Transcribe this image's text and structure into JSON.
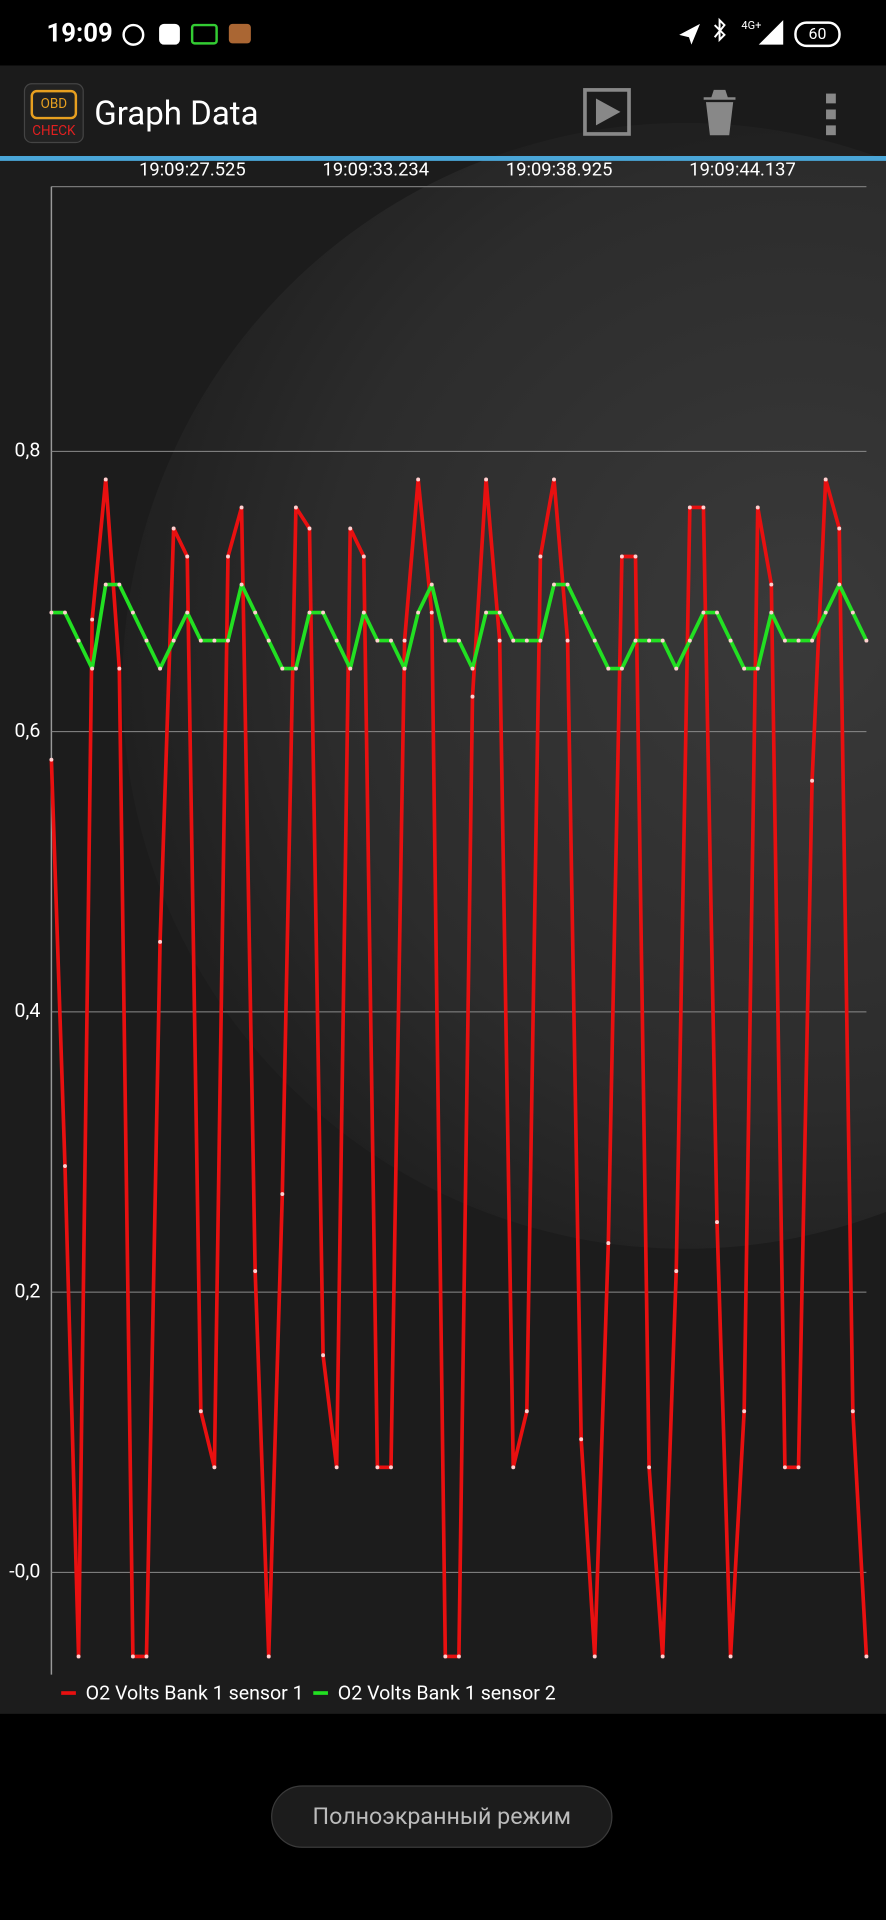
{
  "status_bar": {
    "time": "19:09",
    "network": "4G+",
    "battery": "60"
  },
  "app_bar": {
    "title": "Graph Data",
    "icon_text": "CHECK",
    "icon_badge": "OBD"
  },
  "chart_data": {
    "type": "line",
    "x_labels": [
      "19:09:27.525",
      "19:09:33.234",
      "19:09:38.925",
      "19:09:44.137"
    ],
    "ylim": [
      -0.073,
      0.989
    ],
    "yticks": [
      {
        "value": 0.8,
        "label": "0,8"
      },
      {
        "value": 0.6,
        "label": "0,6"
      },
      {
        "value": 0.4,
        "label": "0,4"
      },
      {
        "value": 0.2,
        "label": "0,2"
      },
      {
        "value": 0,
        "label": "-0,0"
      }
    ],
    "grid": true,
    "series": [
      {
        "name": "O2 Volts Bank 1 sensor 1",
        "color": "#e81010",
        "values": [
          0.58,
          0.29,
          -0.06,
          0.68,
          0.78,
          0.645,
          -0.06,
          -0.06,
          0.45,
          0.745,
          0.725,
          0.115,
          0.075,
          0.725,
          0.76,
          0.215,
          -0.06,
          0.27,
          0.76,
          0.745,
          0.155,
          0.075,
          0.745,
          0.725,
          0.075,
          0.075,
          0.665,
          0.78,
          0.685,
          -0.06,
          -0.06,
          0.625,
          0.78,
          0.665,
          0.075,
          0.115,
          0.725,
          0.78,
          0.665,
          0.095,
          -0.06,
          0.235,
          0.725,
          0.725,
          0.075,
          -0.06,
          0.215,
          0.76,
          0.76,
          0.25,
          -0.06,
          0.115,
          0.76,
          0.705,
          0.075,
          0.075,
          0.565,
          0.78,
          0.745,
          0.115,
          -0.06
        ]
      },
      {
        "name": "O2 Volts Bank 1 sensor 2",
        "color": "#22e022",
        "values": [
          0.685,
          0.685,
          0.665,
          0.645,
          0.705,
          0.705,
          0.685,
          0.665,
          0.645,
          0.665,
          0.685,
          0.665,
          0.665,
          0.665,
          0.705,
          0.685,
          0.665,
          0.645,
          0.645,
          0.685,
          0.685,
          0.665,
          0.645,
          0.685,
          0.665,
          0.665,
          0.645,
          0.685,
          0.705,
          0.665,
          0.665,
          0.645,
          0.685,
          0.685,
          0.665,
          0.665,
          0.665,
          0.705,
          0.705,
          0.685,
          0.665,
          0.645,
          0.645,
          0.665,
          0.665,
          0.665,
          0.645,
          0.665,
          0.685,
          0.685,
          0.665,
          0.645,
          0.645,
          0.685,
          0.665,
          0.665,
          0.665,
          0.685,
          0.705,
          0.685,
          0.665
        ]
      }
    ]
  },
  "bottom_button": {
    "label": "Полноэкранный режим"
  }
}
